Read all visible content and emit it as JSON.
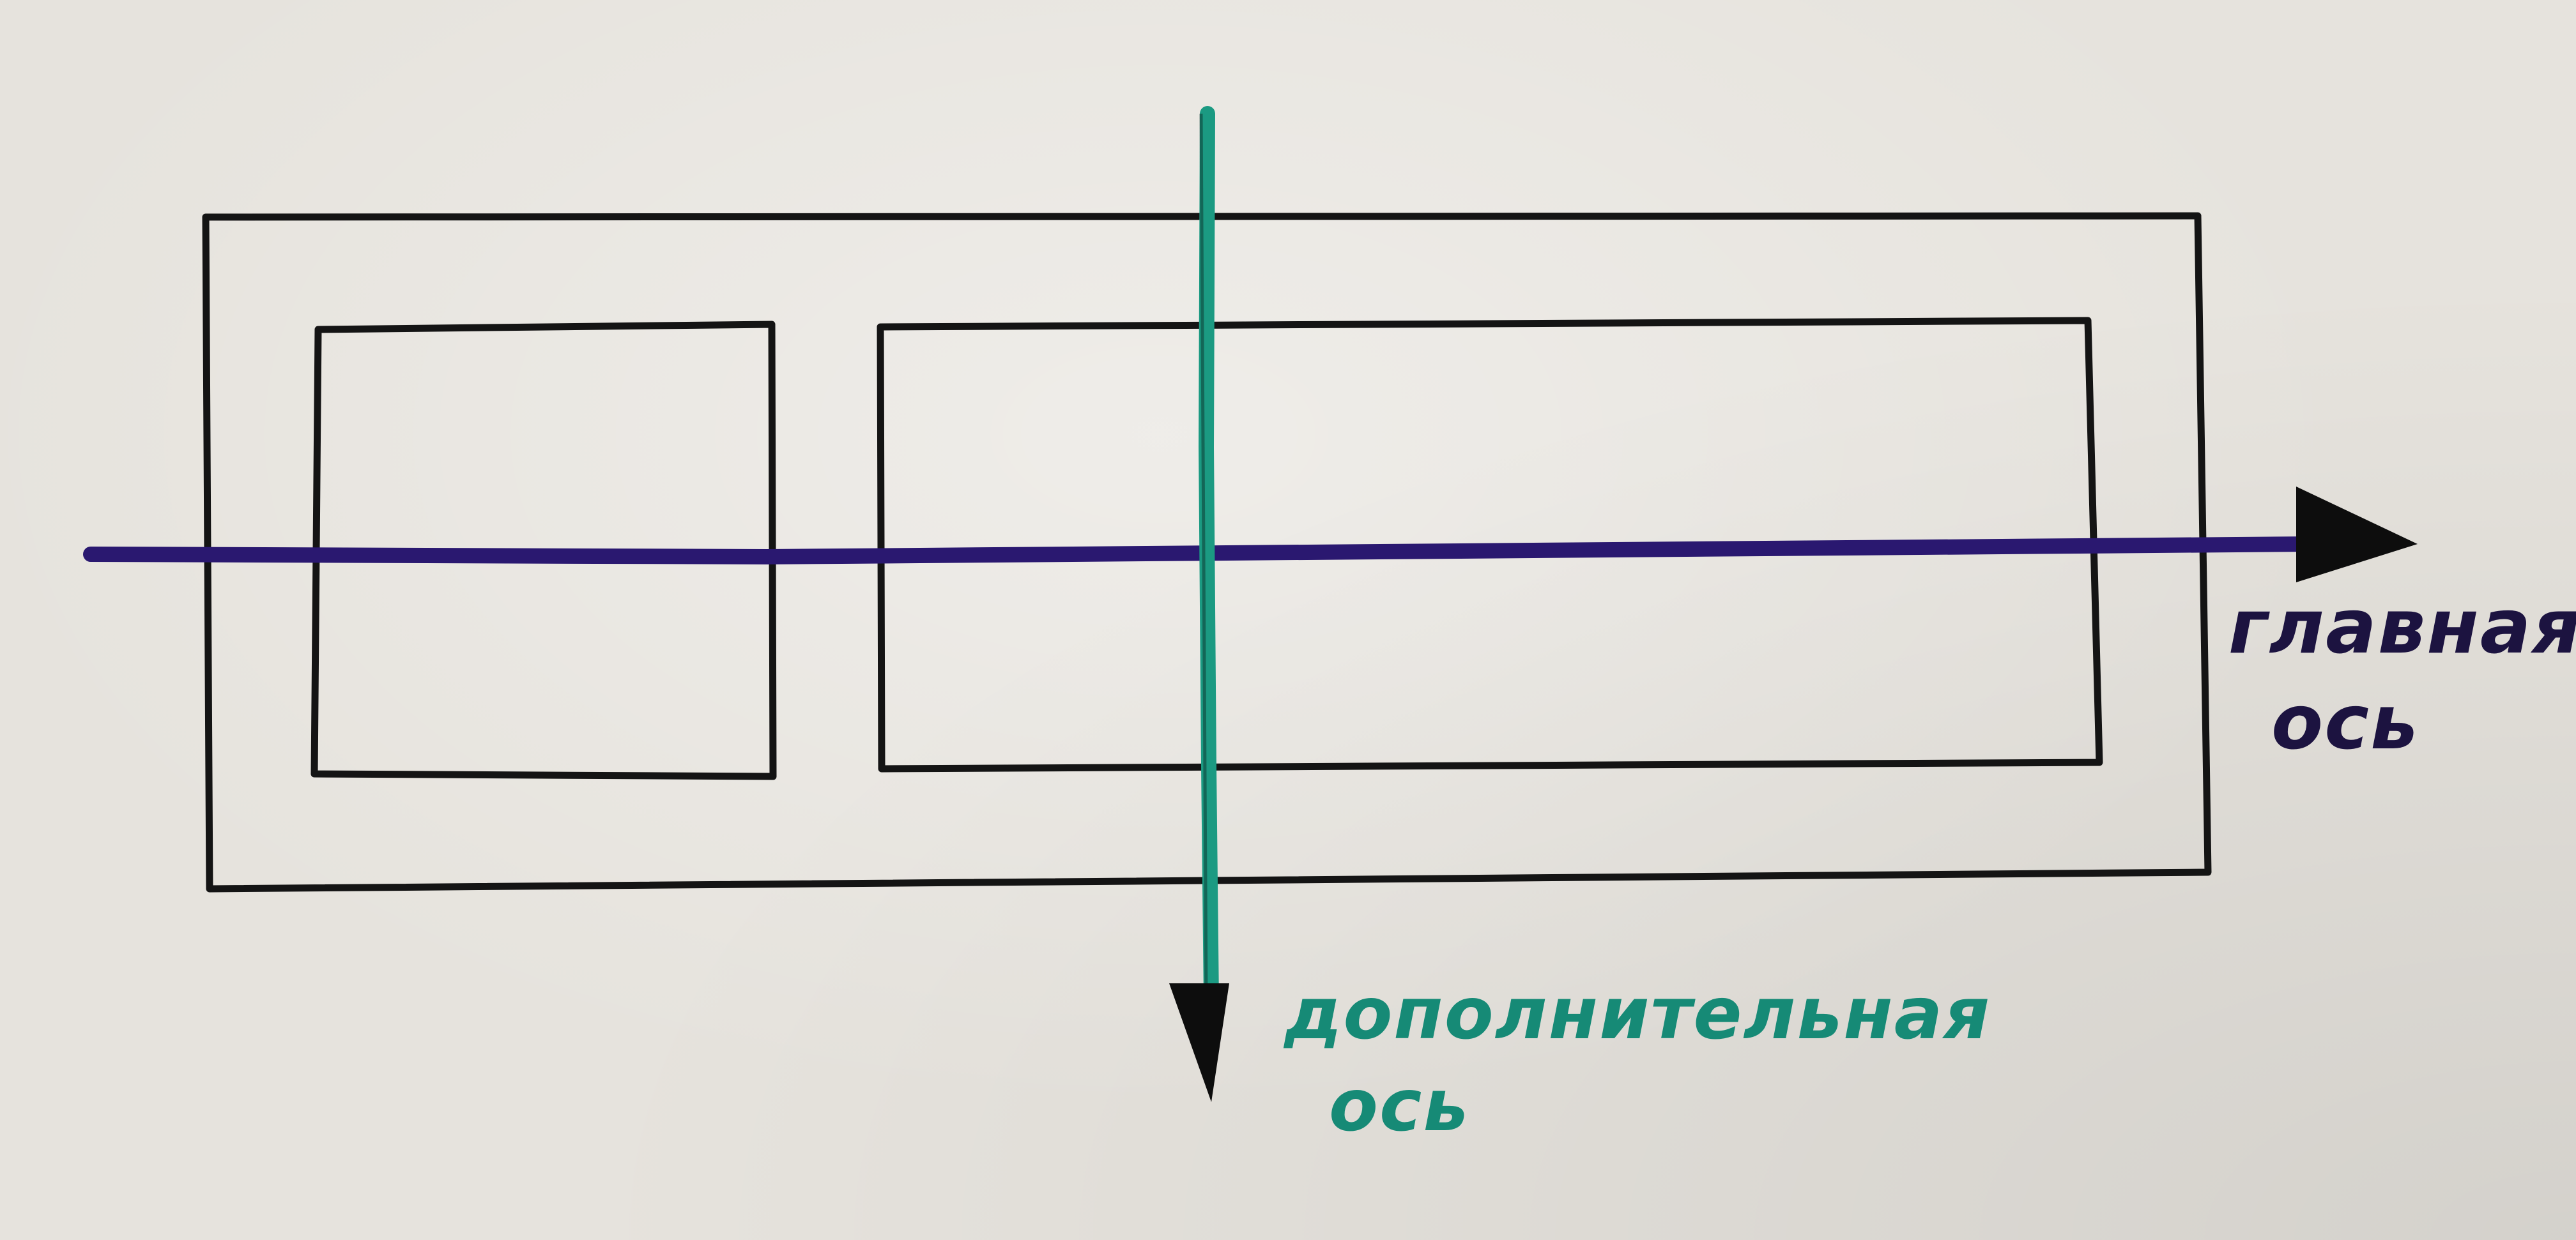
{
  "axes": {
    "main": {
      "label_line1": "главная",
      "label_line2": "ось",
      "color": "#2a1870"
    },
    "cross": {
      "label_line1": "дополнительная",
      "label_line2": "ось",
      "color": "#1b9a82"
    }
  },
  "colors": {
    "paper": "#e6e3dd",
    "dot_grid": "#4a4744",
    "box_outline": "#141414",
    "arrowhead": "#0d0d0d"
  },
  "elements": {
    "container": "flex-container-box",
    "items": [
      "flex-item-1",
      "flex-item-2"
    ]
  }
}
